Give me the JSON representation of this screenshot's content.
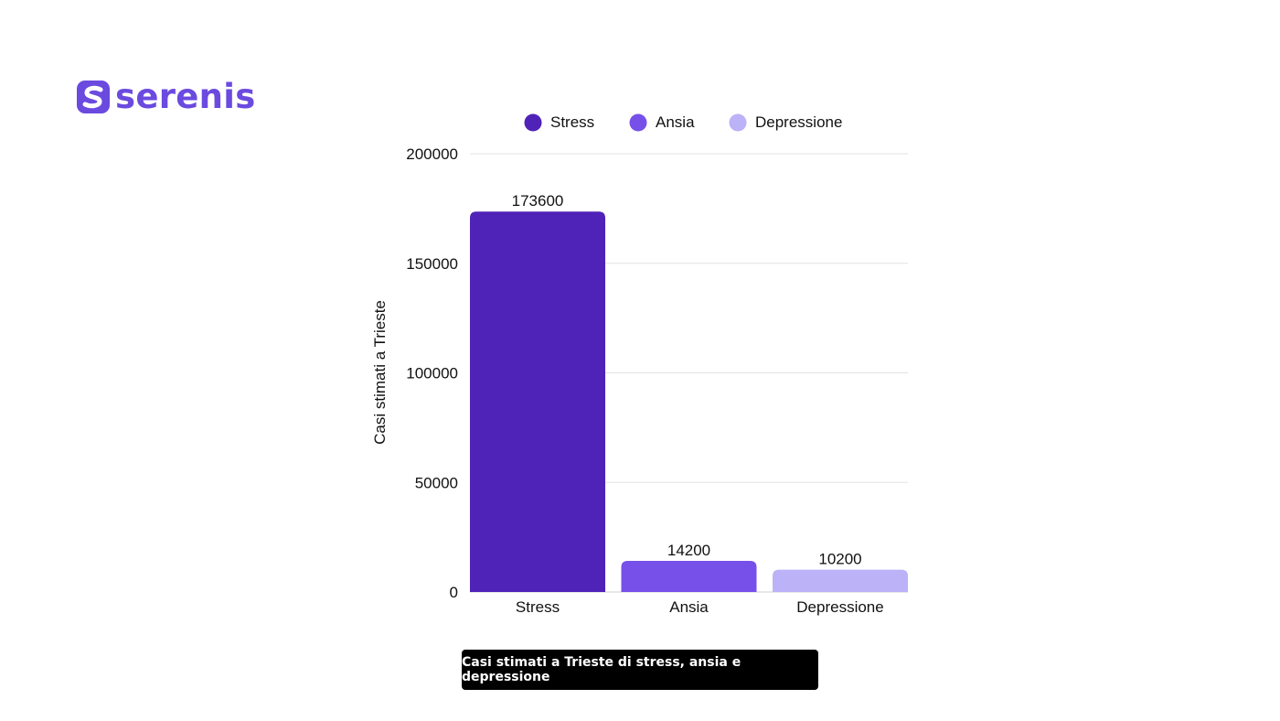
{
  "brand": {
    "name": "serenis",
    "color": "#6b4ae0"
  },
  "caption": "Casi stimati a Trieste di stress, ansia e depressione",
  "chart_data": {
    "type": "bar",
    "title": "",
    "categories": [
      "Stress",
      "Ansia",
      "Depressione"
    ],
    "values": [
      173600,
      14200,
      10200
    ],
    "colors": [
      "#4f22b8",
      "#7650e8",
      "#bcb2f7"
    ],
    "legend": [
      "Stress",
      "Ansia",
      "Depressione"
    ],
    "legend_position": "top",
    "xlabel": "",
    "ylabel": "Casi stimati a Trieste",
    "ylim": [
      0,
      200000
    ],
    "yticks": [
      0,
      50000,
      100000,
      150000,
      200000
    ],
    "grid": true,
    "data_labels": true
  }
}
